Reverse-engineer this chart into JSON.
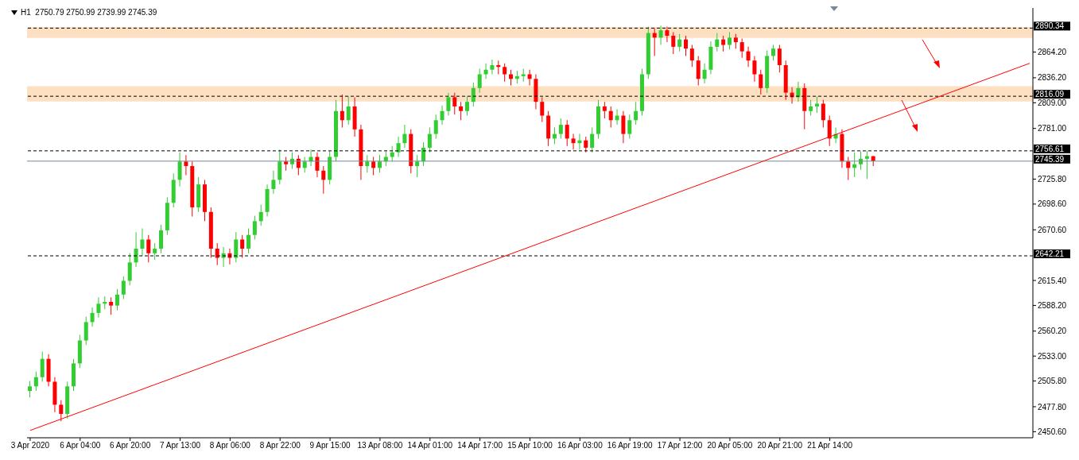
{
  "chart_data": {
    "type": "candlestick",
    "title": "H1  2750.79 2750.99 2739.99 2745.39",
    "categories": [
      "3 Apr 2020",
      null,
      null,
      null,
      null,
      null,
      null,
      null,
      "6 Apr 04:00",
      null,
      null,
      null,
      null,
      null,
      null,
      null,
      "6 Apr 20:00",
      null,
      null,
      null,
      null,
      null,
      null,
      null,
      "7 Apr 13:00",
      null,
      null,
      null,
      null,
      null,
      null,
      null,
      "8 Apr 06:00",
      null,
      null,
      null,
      null,
      null,
      null,
      null,
      "8 Apr 22:00",
      null,
      null,
      null,
      null,
      null,
      null,
      null,
      "9 Apr 15:00",
      null,
      null,
      null,
      null,
      null,
      null,
      null,
      "13 Apr 08:00",
      null,
      null,
      null,
      null,
      null,
      null,
      null,
      "14 Apr 01:00",
      null,
      null,
      null,
      null,
      null,
      null,
      null,
      "14 Apr 17:00",
      null,
      null,
      null,
      null,
      null,
      null,
      null,
      "15 Apr 10:00",
      null,
      null,
      null,
      null,
      null,
      null,
      null,
      "16 Apr 03:00",
      null,
      null,
      null,
      null,
      null,
      null,
      null,
      "16 Apr 19:00",
      null,
      null,
      null,
      null,
      null,
      null,
      null,
      "17 Apr 12:00",
      null,
      null,
      null,
      null,
      null,
      null,
      null,
      "20 Apr 05:00",
      null,
      null,
      null,
      null,
      null,
      null,
      null,
      "20 Apr 21:00",
      null,
      null,
      null,
      null,
      null,
      null,
      null,
      "21 Apr 14:00",
      null,
      null,
      null,
      null,
      null,
      null,
      null,
      null,
      null,
      null,
      null,
      null,
      null,
      null,
      null,
      null,
      null,
      null,
      null,
      null,
      null,
      null,
      null,
      null,
      null,
      null,
      null,
      null,
      null,
      null,
      null,
      null
    ],
    "ohlc": [
      [
        2495,
        2506,
        2488,
        2500
      ],
      [
        2500,
        2516,
        2495,
        2510
      ],
      [
        2510,
        2538,
        2505,
        2530
      ],
      [
        2530,
        2535,
        2500,
        2505
      ],
      [
        2505,
        2510,
        2472,
        2480
      ],
      [
        2480,
        2485,
        2462,
        2470
      ],
      [
        2470,
        2505,
        2465,
        2500
      ],
      [
        2500,
        2530,
        2495,
        2525
      ],
      [
        2525,
        2556,
        2520,
        2550
      ],
      [
        2550,
        2576,
        2545,
        2570
      ],
      [
        2570,
        2586,
        2565,
        2580
      ],
      [
        2580,
        2597,
        2575,
        2590
      ],
      [
        2590,
        2598,
        2584,
        2592
      ],
      [
        2592,
        2597,
        2578,
        2588
      ],
      [
        2588,
        2606,
        2583,
        2600
      ],
      [
        2600,
        2620,
        2595,
        2615
      ],
      [
        2615,
        2645,
        2610,
        2635
      ],
      [
        2635,
        2668,
        2630,
        2650
      ],
      [
        2650,
        2672,
        2642,
        2660
      ],
      [
        2660,
        2665,
        2635,
        2645
      ],
      [
        2645,
        2656,
        2638,
        2650
      ],
      [
        2650,
        2676,
        2645,
        2670
      ],
      [
        2670,
        2706,
        2665,
        2700
      ],
      [
        2700,
        2732,
        2695,
        2725
      ],
      [
        2725,
        2755,
        2718,
        2745
      ],
      [
        2745,
        2752,
        2730,
        2740
      ],
      [
        2740,
        2745,
        2685,
        2695
      ],
      [
        2695,
        2728,
        2690,
        2720
      ],
      [
        2720,
        2725,
        2680,
        2690
      ],
      [
        2690,
        2695,
        2640,
        2650
      ],
      [
        2650,
        2656,
        2632,
        2640
      ],
      [
        2640,
        2652,
        2630,
        2645
      ],
      [
        2645,
        2650,
        2633,
        2640
      ],
      [
        2640,
        2668,
        2635,
        2660
      ],
      [
        2660,
        2665,
        2640,
        2650
      ],
      [
        2650,
        2672,
        2645,
        2665
      ],
      [
        2665,
        2686,
        2660,
        2680
      ],
      [
        2680,
        2698,
        2675,
        2690
      ],
      [
        2690,
        2720,
        2685,
        2715
      ],
      [
        2715,
        2735,
        2710,
        2725
      ],
      [
        2725,
        2758,
        2720,
        2745
      ],
      [
        2745,
        2750,
        2735,
        2742
      ],
      [
        2742,
        2755,
        2737,
        2748
      ],
      [
        2748,
        2752,
        2730,
        2738
      ],
      [
        2738,
        2750,
        2733,
        2745
      ],
      [
        2745,
        2758,
        2740,
        2750
      ],
      [
        2750,
        2755,
        2728,
        2735
      ],
      [
        2735,
        2740,
        2710,
        2725
      ],
      [
        2725,
        2756,
        2720,
        2750
      ],
      [
        2750,
        2812,
        2745,
        2800
      ],
      [
        2800,
        2818,
        2782,
        2790
      ],
      [
        2790,
        2816,
        2785,
        2805
      ],
      [
        2805,
        2815,
        2772,
        2780
      ],
      [
        2780,
        2785,
        2725,
        2740
      ],
      [
        2740,
        2752,
        2733,
        2745
      ],
      [
        2745,
        2750,
        2730,
        2738
      ],
      [
        2738,
        2752,
        2733,
        2745
      ],
      [
        2745,
        2756,
        2740,
        2750
      ],
      [
        2750,
        2762,
        2745,
        2755
      ],
      [
        2755,
        2772,
        2750,
        2765
      ],
      [
        2765,
        2785,
        2760,
        2775
      ],
      [
        2775,
        2780,
        2732,
        2740
      ],
      [
        2740,
        2752,
        2728,
        2745
      ],
      [
        2745,
        2766,
        2740,
        2760
      ],
      [
        2760,
        2782,
        2755,
        2775
      ],
      [
        2775,
        2796,
        2770,
        2790
      ],
      [
        2790,
        2806,
        2785,
        2800
      ],
      [
        2800,
        2820,
        2795,
        2815
      ],
      [
        2815,
        2820,
        2796,
        2805
      ],
      [
        2805,
        2810,
        2790,
        2800
      ],
      [
        2800,
        2816,
        2795,
        2810
      ],
      [
        2810,
        2831,
        2805,
        2825
      ],
      [
        2825,
        2846,
        2820,
        2840
      ],
      [
        2840,
        2852,
        2835,
        2845
      ],
      [
        2845,
        2856,
        2840,
        2850
      ],
      [
        2850,
        2855,
        2840,
        2848
      ],
      [
        2848,
        2852,
        2832,
        2840
      ],
      [
        2840,
        2845,
        2828,
        2835
      ],
      [
        2835,
        2844,
        2830,
        2838
      ],
      [
        2838,
        2846,
        2832,
        2840
      ],
      [
        2840,
        2845,
        2828,
        2835
      ],
      [
        2835,
        2840,
        2802,
        2810
      ],
      [
        2810,
        2815,
        2788,
        2795
      ],
      [
        2795,
        2800,
        2762,
        2770
      ],
      [
        2770,
        2782,
        2764,
        2775
      ],
      [
        2775,
        2792,
        2770,
        2785
      ],
      [
        2785,
        2790,
        2762,
        2770
      ],
      [
        2770,
        2775,
        2758,
        2765
      ],
      [
        2765,
        2775,
        2758,
        2768
      ],
      [
        2768,
        2772,
        2755,
        2760
      ],
      [
        2760,
        2782,
        2755,
        2775
      ],
      [
        2775,
        2812,
        2770,
        2805
      ],
      [
        2805,
        2810,
        2792,
        2800
      ],
      [
        2800,
        2805,
        2782,
        2790
      ],
      [
        2790,
        2802,
        2785,
        2795
      ],
      [
        2795,
        2800,
        2765,
        2775
      ],
      [
        2775,
        2796,
        2770,
        2790
      ],
      [
        2790,
        2810,
        2785,
        2800
      ],
      [
        2800,
        2846,
        2795,
        2840
      ],
      [
        2840,
        2892,
        2835,
        2885
      ],
      [
        2885,
        2890,
        2860,
        2880
      ],
      [
        2880,
        2893,
        2872,
        2888
      ],
      [
        2888,
        2892,
        2875,
        2882
      ],
      [
        2882,
        2886,
        2862,
        2870
      ],
      [
        2870,
        2884,
        2865,
        2878
      ],
      [
        2878,
        2882,
        2860,
        2868
      ],
      [
        2868,
        2872,
        2848,
        2855
      ],
      [
        2855,
        2860,
        2828,
        2835
      ],
      [
        2835,
        2852,
        2830,
        2845
      ],
      [
        2845,
        2876,
        2840,
        2870
      ],
      [
        2870,
        2885,
        2865,
        2878
      ],
      [
        2878,
        2882,
        2865,
        2872
      ],
      [
        2872,
        2886,
        2867,
        2880
      ],
      [
        2880,
        2884,
        2868,
        2875
      ],
      [
        2875,
        2879,
        2858,
        2865
      ],
      [
        2865,
        2870,
        2848,
        2855
      ],
      [
        2855,
        2860,
        2832,
        2840
      ],
      [
        2840,
        2845,
        2818,
        2825
      ],
      [
        2825,
        2866,
        2820,
        2860
      ],
      [
        2860,
        2872,
        2855,
        2868
      ],
      [
        2868,
        2872,
        2842,
        2850
      ],
      [
        2850,
        2855,
        2812,
        2820
      ],
      [
        2820,
        2826,
        2808,
        2815
      ],
      [
        2815,
        2832,
        2810,
        2825
      ],
      [
        2825,
        2830,
        2780,
        2800
      ],
      [
        2800,
        2812,
        2795,
        2805
      ],
      [
        2805,
        2816,
        2798,
        2808
      ],
      [
        2808,
        2812,
        2782,
        2790
      ],
      [
        2790,
        2795,
        2762,
        2770
      ],
      [
        2770,
        2782,
        2765,
        2775
      ],
      [
        2775,
        2780,
        2738,
        2745
      ],
      [
        2745,
        2750,
        2725,
        2738
      ],
      [
        2738,
        2755,
        2728,
        2742
      ],
      [
        2742,
        2756,
        2736,
        2748
      ],
      [
        2748,
        2757,
        2726,
        2750.79
      ],
      [
        2750.79,
        2750.99,
        2739.99,
        2745.39
      ],
      null,
      null,
      null,
      null,
      null,
      null,
      null,
      null,
      null,
      null,
      null,
      null,
      null,
      null,
      null,
      null,
      null,
      null,
      null,
      null,
      null,
      null,
      null,
      null,
      null
    ],
    "colors": [
      "#32cd32",
      "#32cd32",
      "#32cd32",
      "#ff0000",
      "#ff0000",
      "#ff0000",
      "#32cd32",
      "#32cd32",
      "#32cd32",
      "#32cd32",
      "#32cd32",
      "#32cd32",
      "#32cd32",
      "#ff0000",
      "#32cd32",
      "#32cd32",
      "#32cd32",
      "#32cd32",
      "#32cd32",
      "#ff0000",
      "#32cd32",
      "#32cd32",
      "#32cd32",
      "#32cd32",
      "#32cd32",
      "#ff0000",
      "#ff0000",
      "#32cd32",
      "#ff0000",
      "#ff0000",
      "#ff0000",
      "#32cd32",
      "#ff0000",
      "#32cd32",
      "#ff0000",
      "#32cd32",
      "#32cd32",
      "#32cd32",
      "#32cd32",
      "#32cd32",
      "#32cd32",
      "#ff0000",
      "#32cd32",
      "#ff0000",
      "#32cd32",
      "#32cd32",
      "#ff0000",
      "#ff0000",
      "#32cd32",
      "#32cd32",
      "#ff0000",
      "#32cd32",
      "#ff0000",
      "#ff0000",
      "#32cd32",
      "#ff0000",
      "#32cd32",
      "#32cd32",
      "#32cd32",
      "#32cd32",
      "#32cd32",
      "#ff0000",
      "#32cd32",
      "#32cd32",
      "#32cd32",
      "#32cd32",
      "#32cd32",
      "#32cd32",
      "#ff0000",
      "#ff0000",
      "#32cd32",
      "#32cd32",
      "#32cd32",
      "#32cd32",
      "#32cd32",
      "#ff0000",
      "#ff0000",
      "#ff0000",
      "#32cd32",
      "#32cd32",
      "#ff0000",
      "#ff0000",
      "#ff0000",
      "#ff0000",
      "#32cd32",
      "#32cd32",
      "#ff0000",
      "#ff0000",
      "#32cd32",
      "#ff0000",
      "#32cd32",
      "#32cd32",
      "#ff0000",
      "#ff0000",
      "#32cd32",
      "#ff0000",
      "#32cd32",
      "#32cd32",
      "#32cd32",
      "#32cd32",
      "#ff0000",
      "#32cd32",
      "#ff0000",
      "#ff0000",
      "#32cd32",
      "#ff0000",
      "#ff0000",
      "#ff0000",
      "#32cd32",
      "#32cd32",
      "#32cd32",
      "#ff0000",
      "#32cd32",
      "#ff0000",
      "#ff0000",
      "#ff0000",
      "#ff0000",
      "#ff0000",
      "#32cd32",
      "#32cd32",
      "#ff0000",
      "#ff0000",
      "#ff0000",
      "#32cd32",
      "#ff0000",
      "#32cd32",
      "#32cd32",
      "#ff0000",
      "#ff0000",
      "#32cd32",
      "#ff0000",
      "#ff0000",
      "#32cd32",
      "#32cd32",
      "#32cd32",
      "#ff0000",
      null,
      null,
      null,
      null,
      null,
      null,
      null,
      null,
      null,
      null,
      null,
      null,
      null,
      null,
      null,
      null,
      null,
      null,
      null,
      null,
      null,
      null,
      null,
      null,
      null
    ],
    "series": [
      {
        "type": "line",
        "color": "#ff0000",
        "values": [
          2452,
          null,
          null,
          null,
          null,
          null,
          null,
          null,
          null,
          null,
          null,
          null,
          null,
          null,
          null,
          null,
          null,
          null,
          null,
          null,
          null,
          null,
          null,
          null,
          null,
          null,
          null,
          null,
          null,
          null,
          null,
          null,
          null,
          null,
          null,
          null,
          null,
          null,
          null,
          null,
          null,
          null,
          null,
          null,
          null,
          null,
          null,
          null,
          null,
          null,
          null,
          null,
          null,
          null,
          null,
          null,
          null,
          null,
          null,
          null,
          null,
          null,
          null,
          null,
          null,
          null,
          null,
          null,
          null,
          null,
          null,
          null,
          null,
          null,
          null,
          null,
          null,
          null,
          null,
          null,
          null,
          null,
          null,
          null,
          null,
          null,
          null,
          null,
          null,
          null,
          null,
          null,
          null,
          null,
          null,
          null,
          null,
          null,
          null,
          null,
          null,
          null,
          null,
          null,
          null,
          null,
          null,
          null,
          null,
          null,
          null,
          null,
          null,
          null,
          null,
          null,
          null,
          null,
          null,
          null,
          null,
          null,
          null,
          null,
          null,
          null,
          null,
          null,
          null,
          null,
          null,
          null,
          null,
          null,
          null,
          null,
          null,
          null,
          null,
          null,
          null,
          null,
          null,
          null,
          null,
          null,
          null,
          null,
          null,
          null,
          null,
          null,
          null,
          null,
          null,
          null,
          null,
          null,
          null,
          null,
          2852
        ]
      }
    ],
    "ylim": [
      2444,
      2912.3
    ],
    "yticks": [
      {
        "value": 2450.6,
        "label": "2450.60"
      },
      {
        "value": 2477.8,
        "label": "2477.80"
      },
      {
        "value": 2505.8,
        "label": "2505.80"
      },
      {
        "value": 2533,
        "label": "2533.00"
      },
      {
        "value": 2560.2,
        "label": "2560.20"
      },
      {
        "value": 2588.2,
        "label": "2588.20"
      },
      {
        "value": 2615.4,
        "label": "2615.40"
      },
      {
        "value": 2670.6,
        "label": "2670.60"
      },
      {
        "value": 2698.6,
        "label": "2698.60"
      },
      {
        "value": 2725.8,
        "label": "2725.80"
      },
      {
        "value": 2781,
        "label": "2781.00"
      },
      {
        "value": 2809,
        "label": "2809.00"
      },
      {
        "value": 2836.2,
        "label": "2836.20"
      },
      {
        "value": 2864.2,
        "label": "2864.20"
      }
    ],
    "ref_lines": [
      {
        "axis": "y",
        "value": 2890.34,
        "label": "2890.34",
        "color": "#000000",
        "line_style": "dashed"
      },
      {
        "axis": "y",
        "value": 2816.09,
        "label": "2816.09",
        "color": "#000000",
        "line_style": "dashed"
      },
      {
        "axis": "y",
        "value": 2756.61,
        "label": "2756.61",
        "color": "#000000",
        "line_style": "dashed"
      },
      {
        "axis": "y",
        "value": 2745.39,
        "label": "2745.39",
        "color": "#778899",
        "line_style": "solid"
      },
      {
        "axis": "y",
        "value": 2642.21,
        "label": "2642.21",
        "color": "#000000",
        "line_style": "dashed"
      }
    ],
    "bands": [
      {
        "axis": "y",
        "from": 2879.6,
        "to": 2891.6,
        "color": "#fde0c2"
      },
      {
        "axis": "y",
        "from": 2810.3,
        "to": 2827,
        "color": "#fde0c2"
      }
    ],
    "line_style": "solid"
  }
}
